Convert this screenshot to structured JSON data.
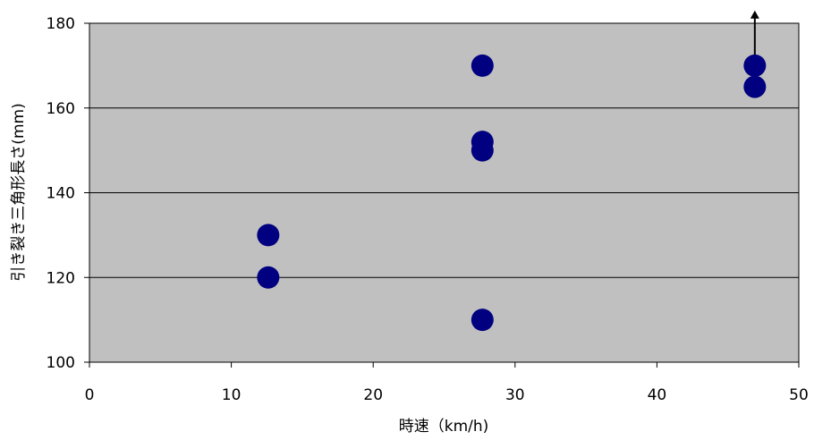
{
  "chart_data": {
    "type": "scatter",
    "xlabel": "時速（km/h)",
    "ylabel": "引き裂き三角形長さ(mm)",
    "xlim": [
      0,
      50
    ],
    "ylim": [
      100,
      180
    ],
    "x_ticks": [
      "0",
      "10",
      "20",
      "30",
      "40",
      "50"
    ],
    "y_ticks": [
      "100",
      "120",
      "140",
      "160",
      "180"
    ],
    "grid": "horizontal",
    "colors": {
      "plot_background": "#c0c0c0",
      "marker": "#000080",
      "gridline": "#000000",
      "arrow": "#000000"
    },
    "points": [
      {
        "x": 12.6,
        "y": 130
      },
      {
        "x": 12.6,
        "y": 120
      },
      {
        "x": 27.7,
        "y": 170
      },
      {
        "x": 27.7,
        "y": 152
      },
      {
        "x": 27.7,
        "y": 150
      },
      {
        "x": 27.7,
        "y": 110
      },
      {
        "x": 46.9,
        "y": 170
      },
      {
        "x": 46.9,
        "y": 165
      }
    ],
    "annotations": [
      {
        "type": "arrow-up",
        "from": {
          "x": 46.9,
          "y": 170
        },
        "to": {
          "x": 46.9,
          "y": 183
        }
      }
    ]
  }
}
